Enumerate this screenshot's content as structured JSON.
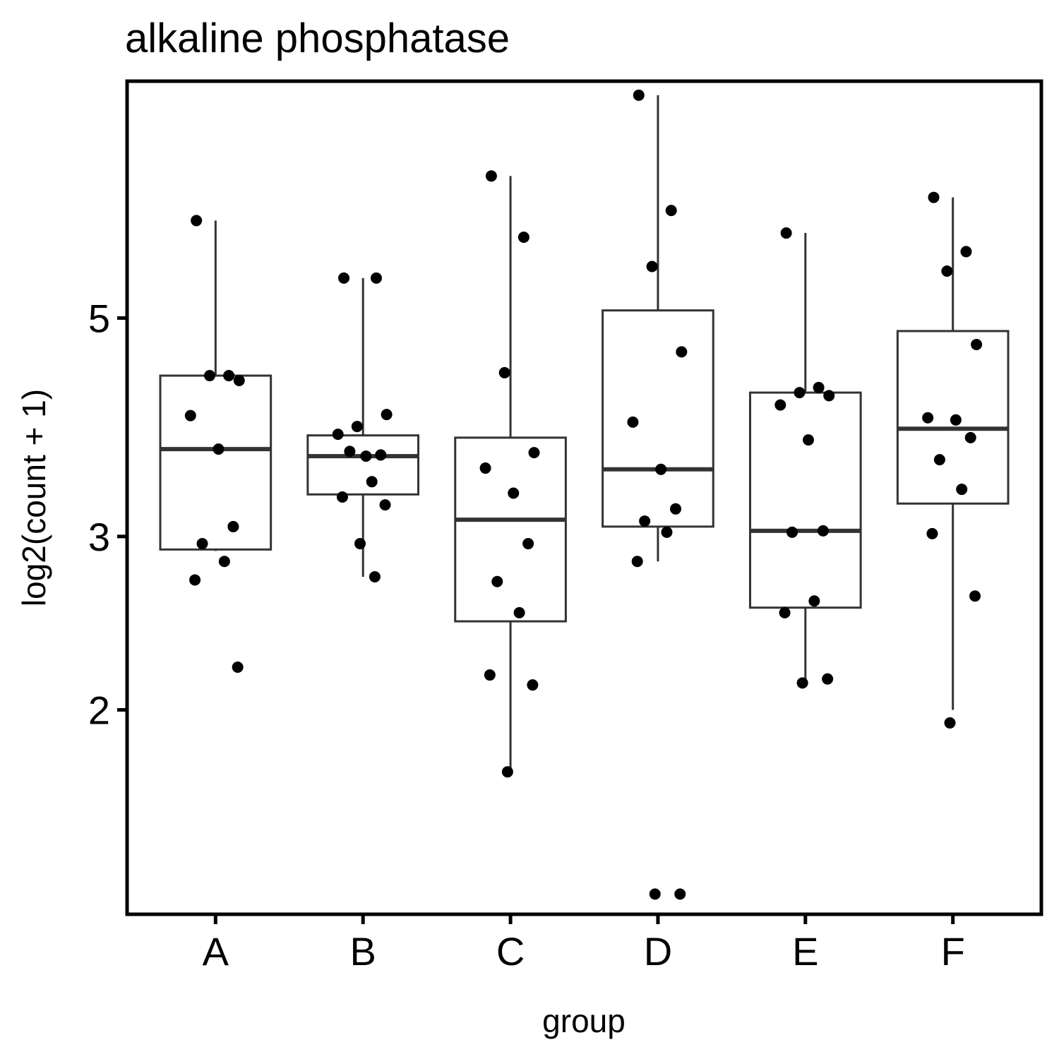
{
  "chart_data": {
    "type": "boxplot",
    "title": "alkaline phosphatase",
    "xlabel": "group",
    "ylabel": "log2(count + 1)",
    "y_scale": "log2",
    "ylim": [
      1.24,
      8.7
    ],
    "y_ticks": [
      2,
      3,
      5
    ],
    "y_tick_labels": [
      "2",
      "3",
      "5"
    ],
    "grid": false,
    "categories": [
      "A",
      "B",
      "C",
      "D",
      "E",
      "F"
    ],
    "groups": [
      {
        "name": "A",
        "whisker_low": 2.9,
        "q1": 2.91,
        "median": 3.68,
        "q3": 4.37,
        "whisker_high": 6.28,
        "points": [
          6.28,
          4.37,
          4.37,
          4.32,
          3.98,
          3.68,
          3.07,
          2.95,
          2.83,
          2.71,
          2.21
        ]
      },
      {
        "name": "B",
        "whisker_low": 2.73,
        "q1": 3.31,
        "median": 3.62,
        "q3": 3.8,
        "whisker_high": 5.49,
        "points": [
          5.49,
          5.49,
          3.88,
          3.99,
          3.81,
          3.62,
          3.63,
          3.66,
          3.41,
          3.29,
          3.23,
          2.95,
          2.73
        ]
      },
      {
        "name": "C",
        "whisker_low": 1.73,
        "q1": 2.46,
        "median": 3.12,
        "q3": 3.78,
        "whisker_high": 6.97,
        "points": [
          6.97,
          6.04,
          4.4,
          3.65,
          3.52,
          3.32,
          2.95,
          2.7,
          2.51,
          2.17,
          2.12,
          1.73
        ]
      },
      {
        "name": "D",
        "whisker_low": 2.83,
        "q1": 3.07,
        "median": 3.51,
        "q3": 5.09,
        "whisker_high": 8.42,
        "points": [
          8.42,
          6.43,
          5.64,
          4.62,
          3.92,
          3.51,
          3.2,
          3.11,
          3.03,
          2.83,
          1.3,
          1.3
        ]
      },
      {
        "name": "E",
        "whisker_low": 2.13,
        "q1": 2.54,
        "median": 3.04,
        "q3": 4.2,
        "whisker_high": 6.1,
        "points": [
          6.1,
          4.25,
          4.2,
          4.17,
          4.08,
          3.76,
          3.04,
          3.03,
          2.58,
          2.51,
          2.15,
          2.13
        ]
      },
      {
        "name": "F",
        "whisker_low": 2.0,
        "q1": 3.24,
        "median": 3.86,
        "q3": 4.85,
        "whisker_high": 6.63,
        "points": [
          6.63,
          5.84,
          5.58,
          4.7,
          3.96,
          3.94,
          3.78,
          3.59,
          3.35,
          3.02,
          2.61,
          1.94
        ]
      }
    ]
  }
}
